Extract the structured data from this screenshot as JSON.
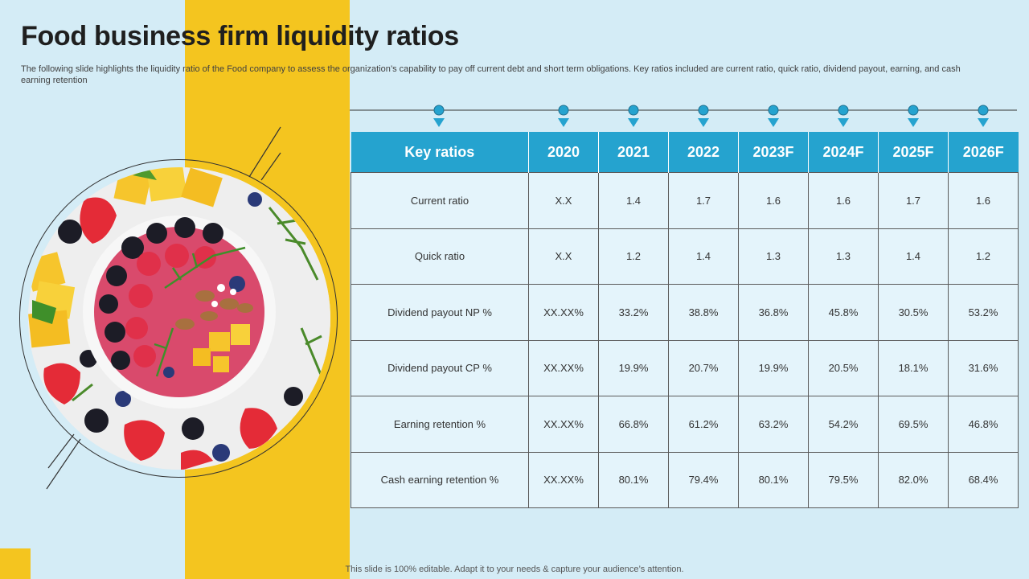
{
  "slide": {
    "title": "Food business firm liquidity ratios",
    "subtitle": "The following slide highlights the liquidity ratio of the Food company to assess the organization’s capability to pay off current debt and short term obligations. Key ratios included are current ratio, quick ratio, dividend payout, earning, and cash earning retention",
    "footer": "This slide is 100% editable. Adapt it to your needs & capture your audience’s attention."
  },
  "colors": {
    "background": "#d4ecf6",
    "accent_yellow": "#f4c51f",
    "header_blue": "#25a3cf",
    "cell_fill": "#e4f4fb",
    "text_dark": "#1f1f1f"
  },
  "image": {
    "description_icon": "food-bowl-photo"
  },
  "table": {
    "headers": [
      "Key ratios",
      "2020",
      "2021",
      "2022",
      "2023F",
      "2024F",
      "2025F",
      "2026F"
    ],
    "rows": [
      [
        "Current  ratio",
        "X.X",
        "1.4",
        "1.7",
        "1.6",
        "1.6",
        "1.7",
        "1.6"
      ],
      [
        "Quick ratio",
        "X.X",
        "1.2",
        "1.4",
        "1.3",
        "1.3",
        "1.4",
        "1.2"
      ],
      [
        "Dividend  payout  NP %",
        "XX.XX%",
        "33.2%",
        "38.8%",
        "36.8%",
        "45.8%",
        "30.5%",
        "53.2%"
      ],
      [
        "Dividend  payout  CP %",
        "XX.XX%",
        "19.9%",
        "20.7%",
        "19.9%",
        "20.5%",
        "18.1%",
        "31.6%"
      ],
      [
        "Earning  retention  %",
        "XX.XX%",
        "66.8%",
        "61.2%",
        "63.2%",
        "54.2%",
        "69.5%",
        "46.8%"
      ],
      [
        "Cash  earning  retention  %",
        "XX.XX%",
        "80.1%",
        "79.4%",
        "80.1%",
        "79.5%",
        "82.0%",
        "68.4%"
      ]
    ]
  }
}
